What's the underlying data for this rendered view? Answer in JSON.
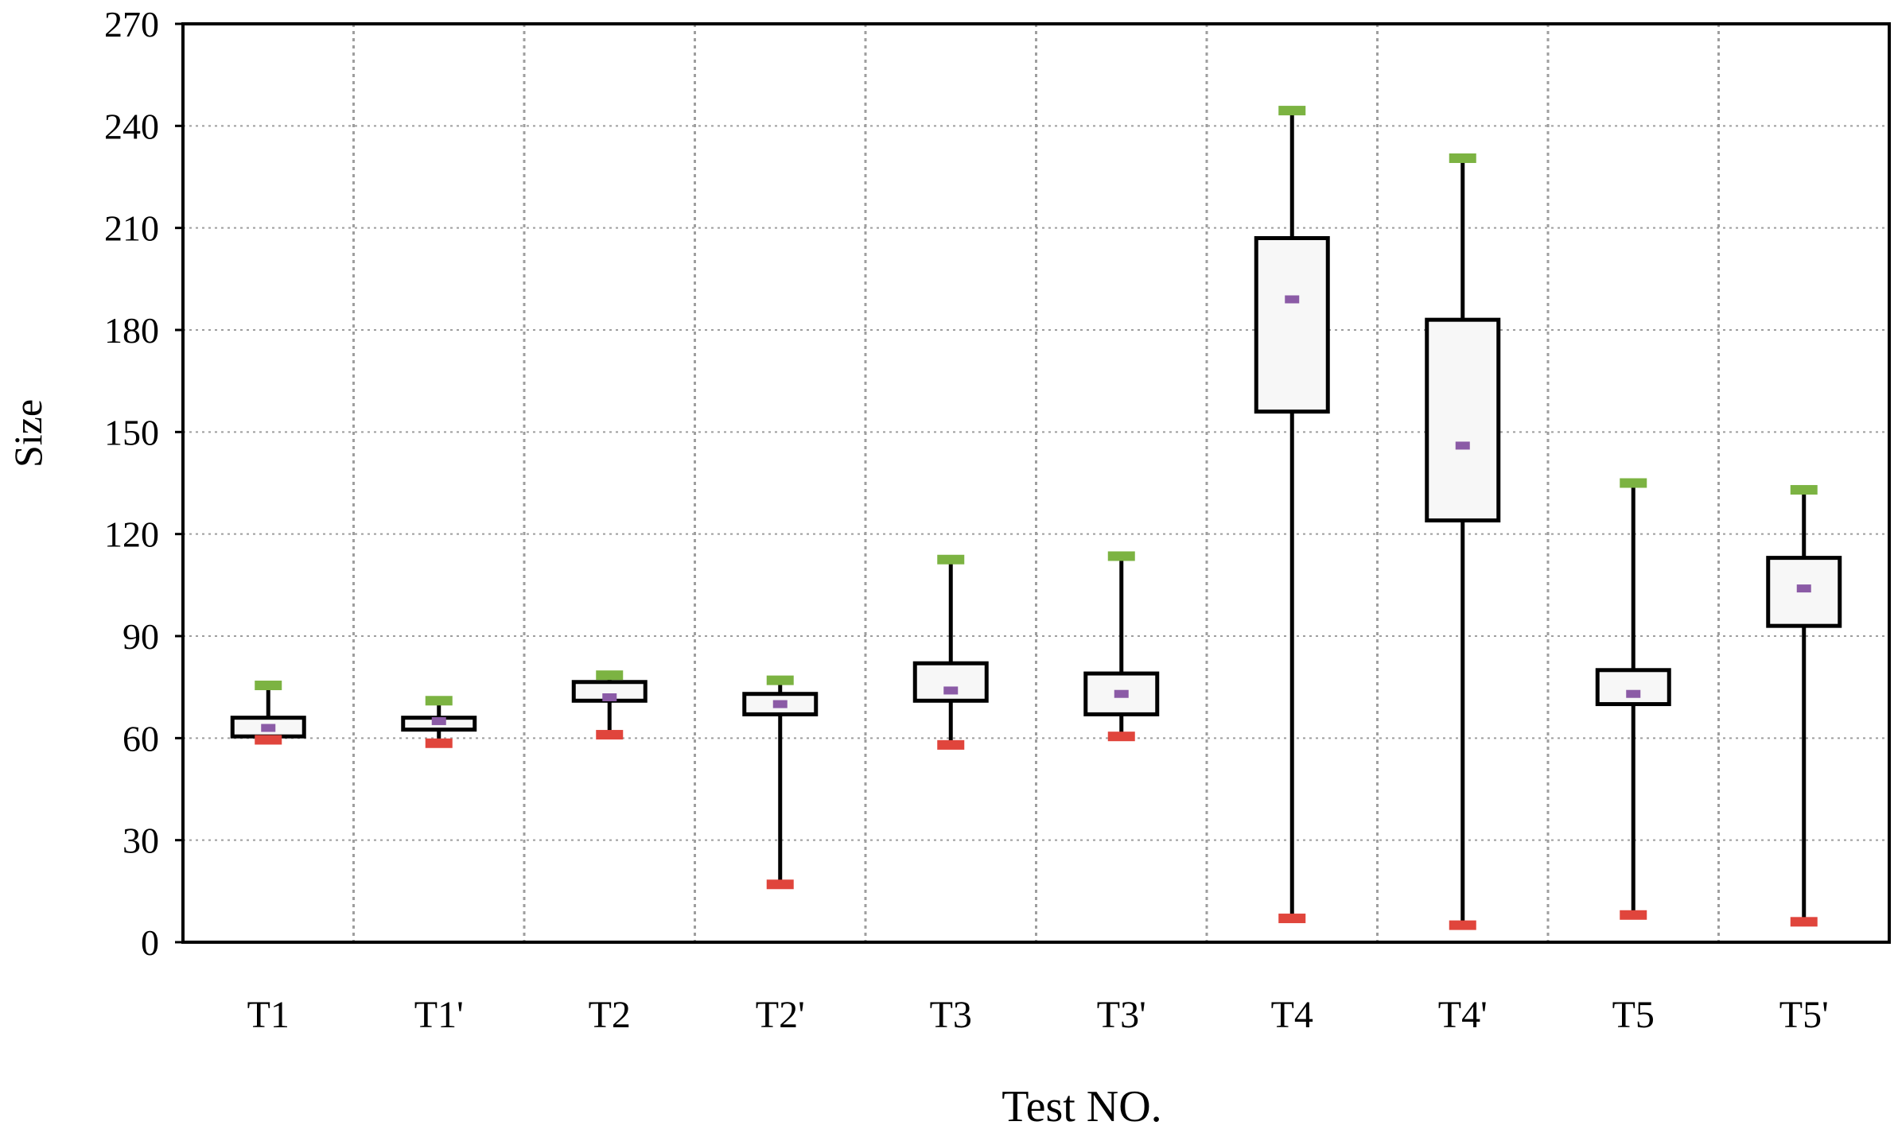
{
  "chart_data": {
    "type": "boxplot",
    "title": "",
    "xlabel": "Test NO.",
    "ylabel": "Size",
    "ylim": [
      0,
      270
    ],
    "y_ticks": [
      "0",
      "30",
      "60",
      "90",
      "120",
      "150",
      "180",
      "210",
      "240",
      "270"
    ],
    "grid": "horizontal dotted at y ticks; vertical dotted separators between categories",
    "categories": [
      "T1",
      "T1'",
      "T2",
      "T2'",
      "T3",
      "T3'",
      "T4",
      "T4'",
      "T5",
      "T5'"
    ],
    "series": [
      {
        "name": "T1",
        "min": 59.5,
        "q1": 60.5,
        "mean": 63,
        "q3": 66,
        "max": 75.5
      },
      {
        "name": "T1'",
        "min": 58.5,
        "q1": 62.5,
        "mean": 65,
        "q3": 66,
        "max": 71
      },
      {
        "name": "T2",
        "min": 61,
        "q1": 71,
        "mean": 72,
        "q3": 76.5,
        "max": 78.5
      },
      {
        "name": "T2'",
        "min": 17,
        "q1": 67,
        "mean": 70,
        "q3": 73,
        "max": 77
      },
      {
        "name": "T3",
        "min": 58,
        "q1": 71,
        "mean": 74,
        "q3": 82,
        "max": 112.5
      },
      {
        "name": "T3'",
        "min": 60.5,
        "q1": 67,
        "mean": 73,
        "q3": 79,
        "max": 113.5
      },
      {
        "name": "T4",
        "min": 7,
        "q1": 156,
        "mean": 189,
        "q3": 207,
        "max": 244.5
      },
      {
        "name": "T4'",
        "min": 5,
        "q1": 124,
        "mean": 146,
        "q3": 183,
        "max": 230.5
      },
      {
        "name": "T5",
        "min": 8,
        "q1": 70,
        "mean": 73,
        "q3": 80,
        "max": 135
      },
      {
        "name": "T5'",
        "min": 6,
        "q1": 93,
        "mean": 104,
        "q3": 113,
        "max": 133
      }
    ],
    "colors": {
      "max_marker": "#7cb342",
      "min_marker": "#e0453c",
      "mean_marker": "#8b5ba6",
      "box_fill": "#f7f7f7",
      "box_stroke": "#000000",
      "grid": "#9e9e9e",
      "axis": "#000000"
    }
  }
}
